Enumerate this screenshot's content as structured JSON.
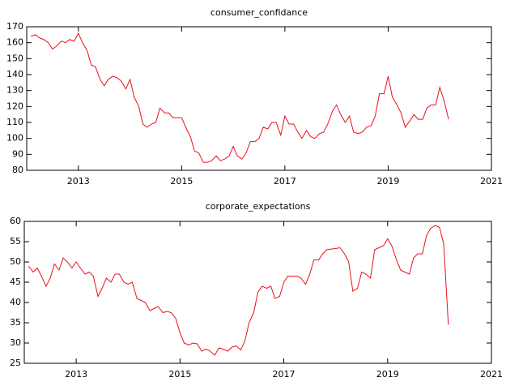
{
  "chart_data": [
    {
      "type": "line",
      "title": "consumer_confidance",
      "color": "#e8101a",
      "x": [
        2012.08,
        2012.17,
        2012.25,
        2012.33,
        2012.42,
        2012.5,
        2012.58,
        2012.67,
        2012.75,
        2012.83,
        2012.92,
        2013,
        2013.08,
        2013.17,
        2013.25,
        2013.33,
        2013.42,
        2013.5,
        2013.58,
        2013.67,
        2013.75,
        2013.83,
        2013.92,
        2014,
        2014.08,
        2014.17,
        2014.25,
        2014.33,
        2014.42,
        2014.5,
        2014.58,
        2014.67,
        2014.75,
        2014.83,
        2014.92,
        2015,
        2015.08,
        2015.17,
        2015.25,
        2015.33,
        2015.42,
        2015.5,
        2015.58,
        2015.67,
        2015.75,
        2015.83,
        2015.92,
        2016,
        2016.08,
        2016.17,
        2016.25,
        2016.33,
        2016.42,
        2016.5,
        2016.58,
        2016.67,
        2016.75,
        2016.83,
        2016.92,
        2017,
        2017.08,
        2017.17,
        2017.25,
        2017.33,
        2017.42,
        2017.5,
        2017.58,
        2017.67,
        2017.75,
        2017.83,
        2017.92,
        2018,
        2018.08,
        2018.17,
        2018.25,
        2018.33,
        2018.42,
        2018.5,
        2018.58,
        2018.67,
        2018.75,
        2018.83,
        2018.92,
        2019,
        2019.08,
        2019.17,
        2019.25,
        2019.33,
        2019.42,
        2019.5,
        2019.58,
        2019.67,
        2019.75,
        2019.83,
        2019.92,
        2020,
        2020.08,
        2020.17
      ],
      "values": [
        164,
        165,
        163,
        162,
        160,
        156,
        158,
        161,
        160,
        162,
        161,
        166,
        160,
        155,
        146,
        145,
        137,
        133,
        137,
        139,
        138,
        136,
        131,
        137,
        126,
        120,
        109,
        107,
        109,
        110,
        119,
        116,
        116,
        113,
        113,
        113,
        107,
        101,
        92,
        91,
        85,
        85,
        86,
        89,
        86,
        87,
        89,
        95,
        89,
        87,
        91,
        98,
        98,
        100,
        107,
        106,
        110,
        110,
        102,
        114,
        109,
        109,
        104,
        100,
        105,
        101,
        100,
        103,
        104,
        109,
        117,
        121,
        115,
        110,
        114,
        104,
        103,
        104,
        107,
        108,
        114,
        128,
        128,
        139,
        126,
        121,
        116,
        107,
        111,
        115,
        112,
        112,
        119,
        121,
        121,
        132,
        124,
        112
      ],
      "xlim": [
        2012,
        2021
      ],
      "xticks": [
        2013,
        2015,
        2017,
        2019,
        2021
      ],
      "ylim": [
        80,
        170
      ],
      "yticks": [
        80,
        90,
        100,
        110,
        120,
        130,
        140,
        150,
        160,
        170
      ]
    },
    {
      "type": "line",
      "title": "corporate_expectations",
      "color": "#e8101a",
      "x": [
        2012.08,
        2012.17,
        2012.25,
        2012.33,
        2012.42,
        2012.5,
        2012.58,
        2012.67,
        2012.75,
        2012.83,
        2012.92,
        2013,
        2013.08,
        2013.17,
        2013.25,
        2013.33,
        2013.42,
        2013.5,
        2013.58,
        2013.67,
        2013.75,
        2013.83,
        2013.92,
        2014,
        2014.08,
        2014.17,
        2014.25,
        2014.33,
        2014.42,
        2014.5,
        2014.58,
        2014.67,
        2014.75,
        2014.83,
        2014.92,
        2015,
        2015.08,
        2015.17,
        2015.25,
        2015.33,
        2015.42,
        2015.5,
        2015.58,
        2015.67,
        2015.75,
        2015.83,
        2015.92,
        2016,
        2016.08,
        2016.17,
        2016.25,
        2016.33,
        2016.42,
        2016.5,
        2016.58,
        2016.67,
        2016.75,
        2016.83,
        2016.92,
        2017,
        2017.08,
        2017.17,
        2017.25,
        2017.33,
        2017.42,
        2017.5,
        2017.58,
        2017.67,
        2017.75,
        2017.83,
        2017.92,
        2018,
        2018.08,
        2018.17,
        2018.25,
        2018.33,
        2018.42,
        2018.5,
        2018.58,
        2018.67,
        2018.75,
        2018.83,
        2018.92,
        2019,
        2019.08,
        2019.17,
        2019.25,
        2019.33,
        2019.42,
        2019.5,
        2019.58,
        2019.67,
        2019.75,
        2019.83,
        2019.92,
        2020,
        2020.08,
        2020.17
      ],
      "values": [
        49,
        47.5,
        48.5,
        46.5,
        44,
        46,
        49.5,
        48,
        51,
        50,
        48.5,
        50,
        48.5,
        47,
        47.5,
        46.5,
        41.5,
        43.5,
        46,
        45,
        47,
        47,
        45,
        44.5,
        45,
        41,
        40.5,
        40,
        38,
        38.5,
        39,
        37.5,
        37.8,
        37.5,
        36,
        32.5,
        30,
        29.5,
        30,
        29.8,
        28,
        28.5,
        28,
        27,
        28.8,
        28.5,
        28,
        29,
        29.3,
        28.3,
        30.5,
        35,
        37.5,
        42.5,
        44,
        43.5,
        44,
        41,
        41.5,
        45,
        46.5,
        46.5,
        46.5,
        46,
        44.5,
        47,
        50.5,
        50.5,
        52,
        53,
        53.2,
        53.3,
        53.5,
        52,
        50,
        42.8,
        43.5,
        47.5,
        47,
        46,
        53,
        53.5,
        54,
        55.7,
        54,
        50.5,
        48,
        47.5,
        47,
        51,
        52,
        52,
        56.5,
        58.3,
        59,
        58.5,
        54.5,
        34.5
      ],
      "xlim": [
        2012,
        2021
      ],
      "xticks": [
        2013,
        2015,
        2017,
        2019,
        2021
      ],
      "ylim": [
        25,
        60
      ],
      "yticks": [
        25,
        30,
        35,
        40,
        45,
        50,
        55,
        60
      ]
    }
  ]
}
